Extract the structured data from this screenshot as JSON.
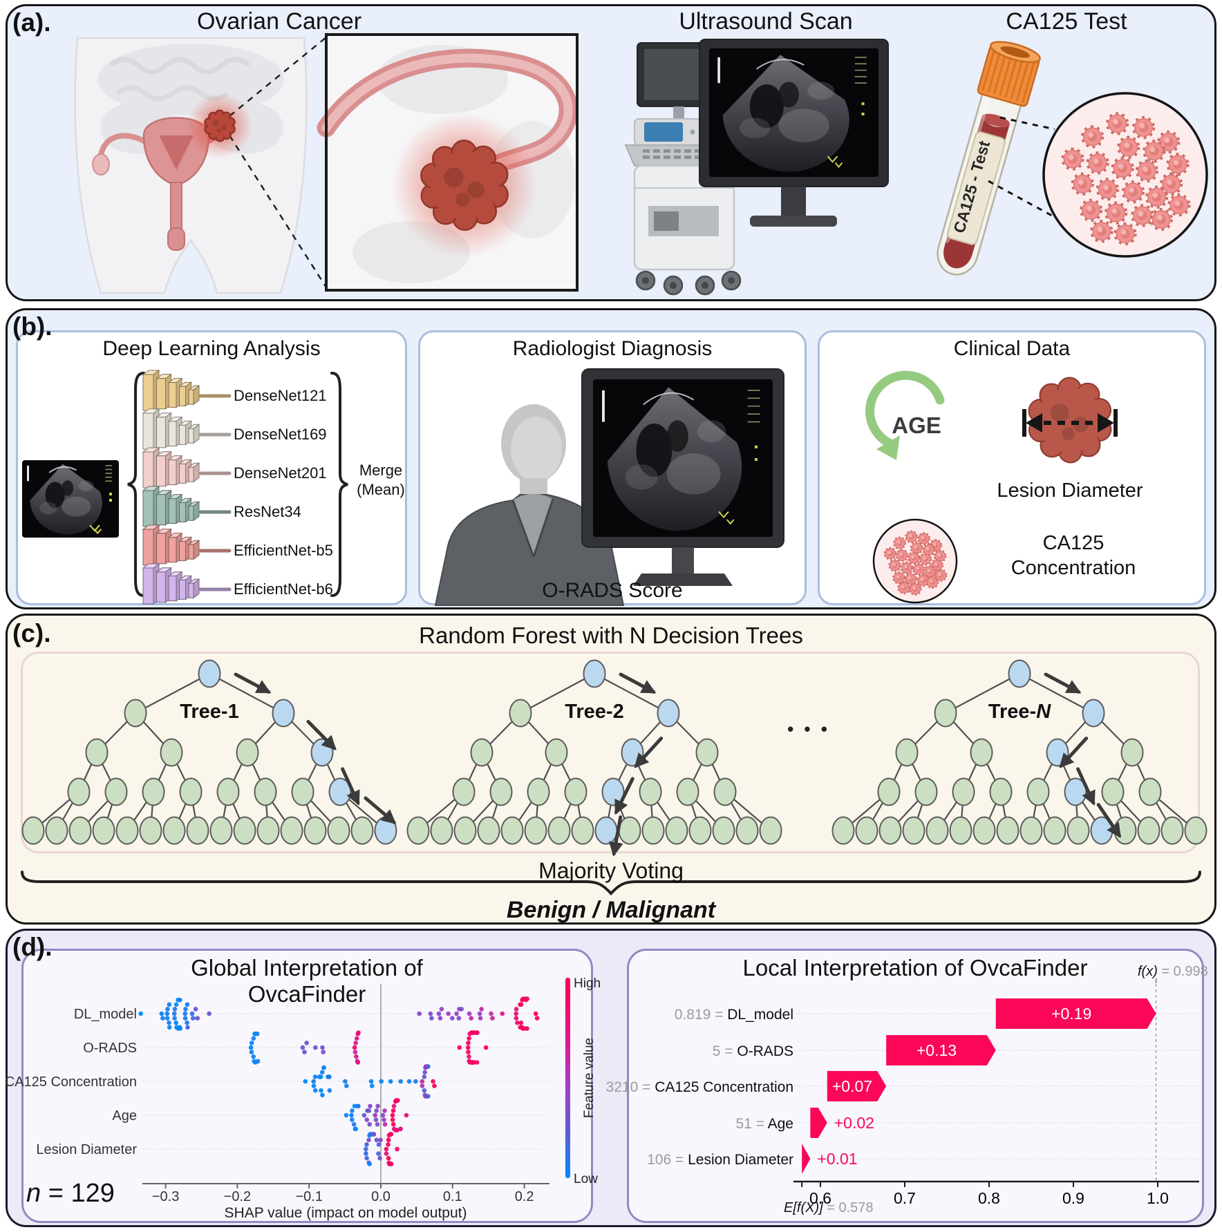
{
  "colors": {
    "shap_high": "#ff0051",
    "shap_low": "#008bfb",
    "waterfall_bar": "#fb0757",
    "tree_node_green": "#ccdfc3",
    "tree_node_blue": "#bad9f1",
    "panel_ab_bg": "#e9effb",
    "panel_c_bg": "#fbf6ec",
    "panel_d_bg": "#edeaf8",
    "model_colors": [
      "#ecce92",
      "#eae5da",
      "#f2cfcb",
      "#a3c2b5",
      "#f0a29e",
      "#d2b5ea"
    ]
  },
  "panel_a": {
    "label": "(a).",
    "titles": {
      "ovarian": "Ovarian Cancer",
      "ultrasound": "Ultrasound Scan",
      "ca125": "CA125 Test"
    },
    "tube_label": "CA125 - Test"
  },
  "panel_b": {
    "label": "(b).",
    "deep_learning": {
      "title": "Deep Learning Analysis",
      "models": [
        "DenseNet121",
        "DenseNet169",
        "DenseNet201",
        "ResNet34",
        "EfficientNet-b5",
        "EfficientNet-b6"
      ],
      "merge_line1": "Merge",
      "merge_line2": "(Mean)"
    },
    "radiologist": {
      "title": "Radiologist Diagnosis",
      "caption": "O-RADS Score"
    },
    "clinical": {
      "title": "Clinical Data",
      "age_label": "AGE",
      "lesion_label": "Lesion Diameter",
      "ca125_line1": "CA125",
      "ca125_line2": "Concentration"
    }
  },
  "panel_c": {
    "label": "(c).",
    "title": "Random Forest with N Decision Trees",
    "trees": [
      {
        "name": "Tree-1"
      },
      {
        "name": "Tree-2"
      },
      {
        "name_prefix": "Tree-",
        "name_italic": "N"
      }
    ],
    "dots": "• • •",
    "majority": "Majority Voting",
    "result": "Benign / Malignant"
  },
  "panel_d": {
    "label": "(d).",
    "global": {
      "title": "Global Interpretation of OvcaFinder",
      "n_italic": "n",
      "n_rest": " = 129"
    },
    "local": {
      "title": "Local Interpretation of OvcaFinder"
    }
  },
  "chart_data": [
    {
      "type": "scatter",
      "variant": "shap_beeswarm",
      "title": "Global Interpretation of OvcaFinder",
      "xlabel": "SHAP value (impact on model output)",
      "xlim": [
        -0.35,
        0.245
      ],
      "xticks": [
        -0.3,
        -0.2,
        -0.1,
        0.0,
        0.1,
        0.2
      ],
      "xtick_labels": [
        "−0.3",
        "−0.2",
        "−0.1",
        "0.0",
        "0.1",
        "0.2"
      ],
      "n": 129,
      "features": [
        "DL_model",
        "O-RADS",
        "CA125 Concentration",
        "Age",
        "Lesion Diameter"
      ],
      "colorbar": {
        "high": "High",
        "low": "Low",
        "label": "Feature value"
      },
      "grid": "dotted-rows",
      "legend_position": "right",
      "clusters": [
        [
          [
            -0.283,
            0.02,
            22,
            0.0,
            0.12
          ],
          [
            -0.262,
            0.01,
            5,
            0.2,
            0.45
          ],
          [
            -0.335,
            0.001,
            1,
            0,
            0
          ],
          [
            -0.305,
            0.004,
            2,
            0.05,
            0.1
          ],
          [
            -0.24,
            0.002,
            1,
            0.35,
            0.35
          ],
          [
            0.052,
            0.002,
            1,
            0.5,
            0.5
          ],
          [
            0.068,
            0.004,
            2,
            0.45,
            0.55
          ],
          [
            0.082,
            0.005,
            3,
            0.5,
            0.6
          ],
          [
            0.097,
            0.004,
            2,
            0.5,
            0.65
          ],
          [
            0.11,
            0.005,
            4,
            0.45,
            0.7
          ],
          [
            0.125,
            0.004,
            2,
            0.6,
            0.75
          ],
          [
            0.14,
            0.004,
            3,
            0.55,
            0.8
          ],
          [
            0.155,
            0.003,
            2,
            0.7,
            0.8
          ],
          [
            0.168,
            0.002,
            1,
            0.85,
            0.85
          ],
          [
            0.197,
            0.011,
            20,
            0.88,
            1.0
          ],
          [
            0.216,
            0.003,
            2,
            0.95,
            1.0
          ]
        ],
        [
          [
            -0.176,
            0.007,
            11,
            0,
            0.1
          ],
          [
            -0.106,
            0.004,
            3,
            0.35,
            0.45
          ],
          [
            -0.092,
            0.002,
            1,
            0.4,
            0.4
          ],
          [
            -0.081,
            0.003,
            2,
            0.45,
            0.5
          ],
          [
            -0.034,
            0.006,
            9,
            0.78,
            0.95
          ],
          [
            0.127,
            0.009,
            26,
            0.9,
            1.0
          ],
          [
            0.109,
            0.002,
            1,
            1,
            1
          ],
          [
            0.147,
            0.002,
            1,
            1,
            1
          ]
        ],
        [
          [
            -0.082,
            0.016,
            16,
            0,
            0.12
          ],
          [
            -0.105,
            0.002,
            1,
            0,
            0
          ],
          [
            -0.049,
            0.003,
            2,
            0.05,
            0.1
          ],
          [
            -0.013,
            0.003,
            2,
            0,
            0.1
          ],
          [
            0.0,
            0.002,
            1,
            0.05,
            0.05
          ],
          [
            0.012,
            0.002,
            1,
            0,
            0
          ],
          [
            0.027,
            0.002,
            1,
            0.1,
            0.1
          ],
          [
            0.04,
            0.002,
            1,
            0.05,
            0.05
          ],
          [
            0.05,
            0.002,
            1,
            0.1,
            0.1
          ],
          [
            0.063,
            0.006,
            15,
            0.15,
            0.95
          ],
          [
            0.074,
            0.003,
            2,
            0.9,
            1.0
          ]
        ],
        [
          [
            -0.036,
            0.007,
            9,
            0,
            0.15
          ],
          [
            -0.048,
            0.002,
            1,
            0,
            0
          ],
          [
            -0.018,
            0.006,
            6,
            0.3,
            0.55
          ],
          [
            -0.006,
            0.005,
            5,
            0.4,
            0.65
          ],
          [
            0.004,
            0.004,
            4,
            0.5,
            0.8
          ],
          [
            0.021,
            0.008,
            16,
            0.85,
            1.0
          ],
          [
            0.035,
            0.002,
            1,
            0.9,
            0.9
          ]
        ],
        [
          [
            -0.015,
            0.008,
            16,
            0,
            0.5
          ],
          [
            -0.003,
            0.004,
            5,
            0.25,
            0.6
          ],
          [
            0.012,
            0.005,
            14,
            0.85,
            1.0
          ],
          [
            0.023,
            0.002,
            1,
            0.92,
            0.92
          ]
        ]
      ]
    },
    {
      "type": "bar",
      "variant": "shap_waterfall",
      "title": "Local Interpretation of OvcaFinder",
      "base": 0.578,
      "fx": 0.998,
      "fx_label": "f(x)",
      "fx_rest": " = 0.998",
      "base_label": "E[f(X)]",
      "base_rest": " = 0.578",
      "xticks": [
        0.6,
        0.7,
        0.8,
        0.9,
        1.0
      ],
      "xtick_labels": [
        "0.6",
        "0.7",
        "0.8",
        "0.9",
        "1.0"
      ],
      "rows": [
        {
          "value_text": "0.819 = ",
          "feature": "DL_model",
          "contribution": "+0.19",
          "start": 0.808,
          "end": 0.998,
          "label_inside": true
        },
        {
          "value_text": "5 = ",
          "feature": "O-RADS",
          "contribution": "+0.13",
          "start": 0.678,
          "end": 0.808,
          "label_inside": true
        },
        {
          "value_text": "3210 = ",
          "feature": "CA125 Concentration",
          "contribution": "+0.07",
          "start": 0.608,
          "end": 0.678,
          "label_inside": true
        },
        {
          "value_text": "51 = ",
          "feature": "Age",
          "contribution": "+0.02",
          "start": 0.588,
          "end": 0.608,
          "label_inside": false
        },
        {
          "value_text": "106 = ",
          "feature": "Lesion Diameter",
          "contribution": "+0.01",
          "start": 0.578,
          "end": 0.588,
          "label_inside": false
        }
      ]
    }
  ]
}
